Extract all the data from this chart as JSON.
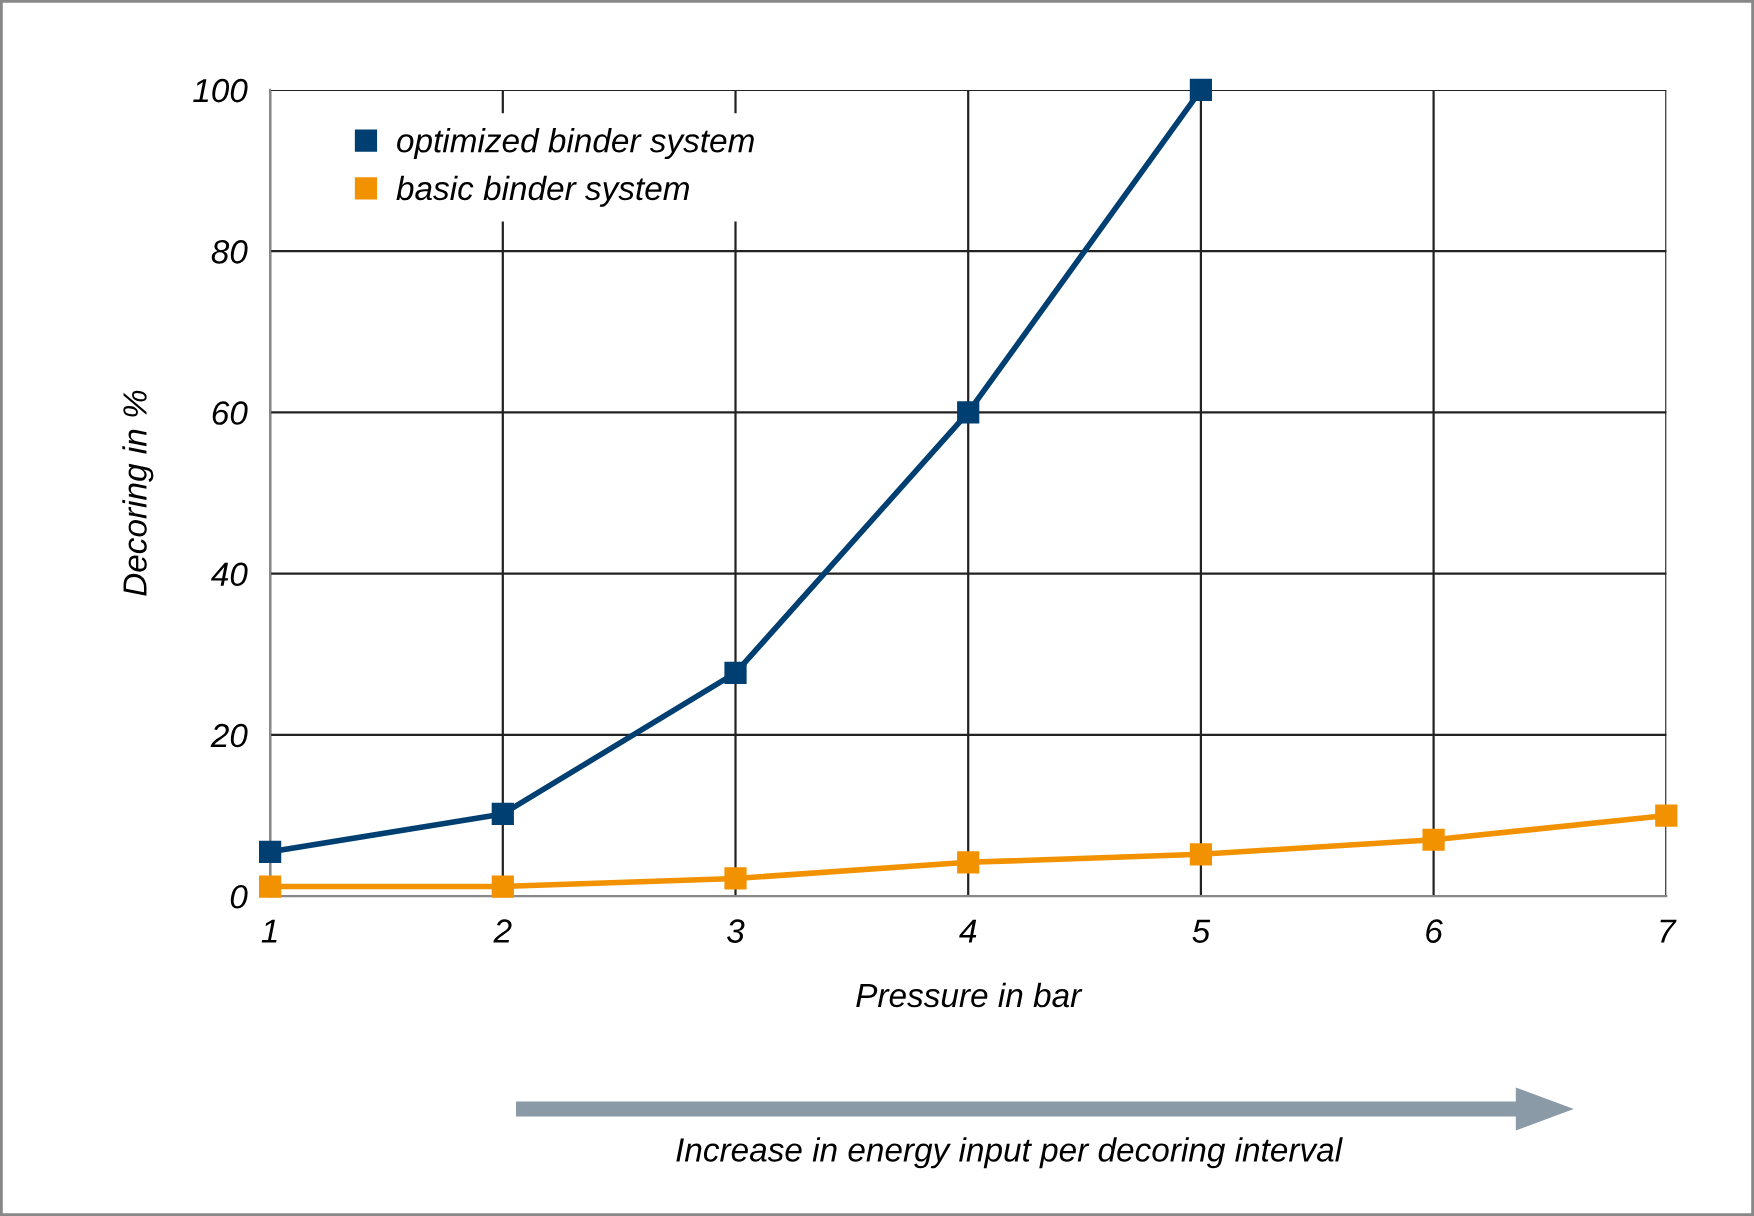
{
  "chart_data": {
    "type": "line",
    "xlabel": "Pressure in bar",
    "ylabel": "Decoring in %",
    "x": [
      1,
      2,
      3,
      4,
      5,
      6,
      7
    ],
    "series": [
      {
        "name": "optimized binder system",
        "color": "#003f72",
        "values": [
          5.5,
          10.2,
          27.7,
          60,
          100,
          null,
          null
        ]
      },
      {
        "name": "basic binder system",
        "color": "#f39200",
        "values": [
          1.2,
          1.2,
          2.2,
          4.2,
          5.2,
          7,
          10
        ]
      }
    ],
    "xlim": [
      1,
      7
    ],
    "xticks": [
      1,
      2,
      3,
      4,
      5,
      6,
      7
    ],
    "ylim": [
      0,
      100
    ],
    "yticks": [
      0,
      20,
      40,
      60,
      80,
      100
    ],
    "grid": true,
    "legend": "top left",
    "marker": "square",
    "line_style": "solid",
    "annotations": [
      "Increase in energy input per decoring interval"
    ]
  }
}
